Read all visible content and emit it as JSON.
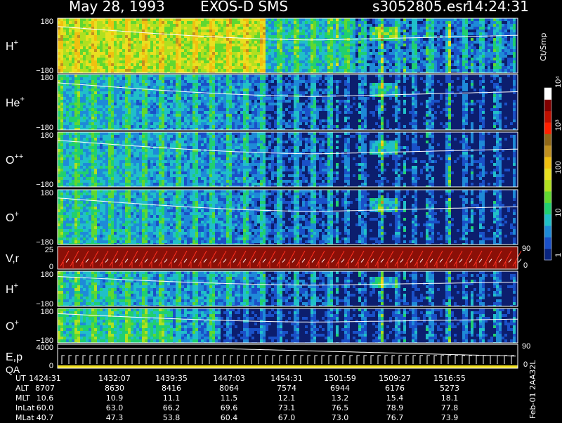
{
  "header": {
    "title": "May 28, 1993",
    "mission": "EXOS-D SMS",
    "file_id": "s3052805.esr",
    "time": "14:24:31"
  },
  "colorbar": {
    "unit_label": "Ct/Smp",
    "tick_labels": [
      "1",
      "10",
      "100",
      "10³",
      "10⁴"
    ],
    "colors": [
      "#0a2580",
      "#1a50c8",
      "#1e8ad8",
      "#20c0c8",
      "#20d070",
      "#60d830",
      "#b0e020",
      "#e8e020",
      "#f0c010",
      "#c09020",
      "#906818",
      "#ff2000",
      "#c01000",
      "#800000",
      "#ffffff"
    ]
  },
  "footer_id": "Feb-01  2AA32L",
  "footer": {
    "rows": [
      {
        "label": "UT",
        "values": [
          "1424:31",
          "1432:07",
          "1439:35",
          "1447:03",
          "1454:31",
          "1501:59",
          "1509:27",
          "1516:55"
        ]
      },
      {
        "label": "ALT",
        "values": [
          "8707",
          "8630",
          "8416",
          "8064",
          "7574",
          "6944",
          "6176",
          "5273"
        ]
      },
      {
        "label": "MLT",
        "values": [
          "10.6",
          "10.9",
          "11.1",
          "11.5",
          "12.1",
          "13.2",
          "15.4",
          "18.1"
        ]
      },
      {
        "label": "InLat",
        "values": [
          "60.0",
          "63.0",
          "66.2",
          "69.6",
          "73.1",
          "76.5",
          "78.9",
          "77.8"
        ]
      },
      {
        "label": "MLat",
        "values": [
          "40.7",
          "47.3",
          "53.8",
          "60.4",
          "67.0",
          "73.0",
          "76.7",
          "73.9"
        ]
      }
    ]
  },
  "chart_data": {
    "type": "heatmap",
    "panels": [
      {
        "label": "H",
        "superscript": "+",
        "ymax": "180",
        "ymin": "−180",
        "style": "spectrogram-bright"
      },
      {
        "label": "He",
        "superscript": "+",
        "ymax": "180",
        "ymin": "−180",
        "style": "spectrogram"
      },
      {
        "label": "O",
        "superscript": "++",
        "ymax": "180",
        "ymin": "−180",
        "style": "spectrogram"
      },
      {
        "label": "O",
        "superscript": "+",
        "ymax": "180",
        "ymin": "−180",
        "style": "spectrogram"
      },
      {
        "label": "V,r",
        "superscript": "",
        "ymax": "25",
        "ymin": "0",
        "right_top": "90",
        "right_bottom": "0",
        "style": "sawtooth"
      },
      {
        "label": "H",
        "superscript": "+",
        "ymax": "180",
        "ymin": "−180",
        "style": "spectrogram"
      },
      {
        "label": "O",
        "superscript": "+",
        "ymax": "180",
        "ymin": "−180",
        "style": "spectrogram-short"
      },
      {
        "label": "E,p",
        "label2": "QA",
        "superscript": "",
        "ymax": "4000",
        "ymin": "0",
        "right_top": "90",
        "right_bottom": "0",
        "style": "energy"
      }
    ],
    "x_ticks": [
      "1424:31",
      "1432:07",
      "1439:35",
      "1447:03",
      "1454:31",
      "1501:59",
      "1509:27",
      "1516:55"
    ]
  }
}
